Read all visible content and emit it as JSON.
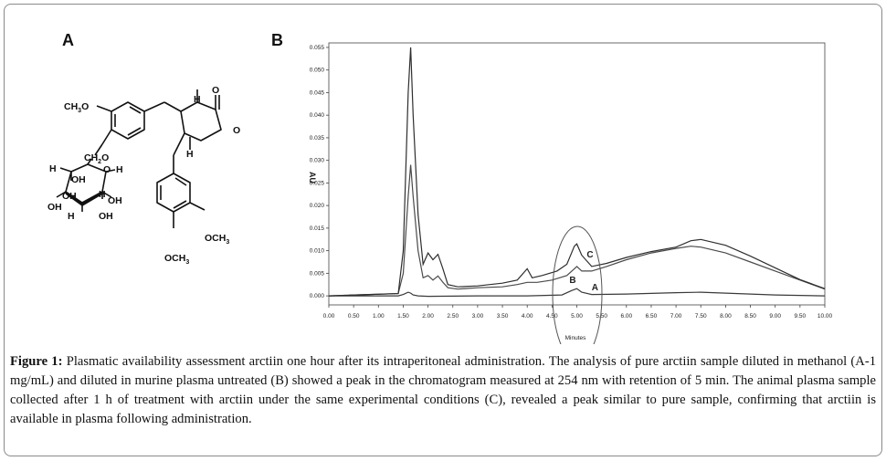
{
  "panels": {
    "a_label": "A",
    "b_label": "B"
  },
  "structure": {
    "labels": [
      "CH3O",
      "CH2O",
      "H",
      "O",
      "H",
      "OH",
      "OH",
      "H",
      "OH",
      "OH",
      "H",
      "OH",
      "O",
      "O",
      "H",
      "H",
      "OCH3",
      "OCH3"
    ]
  },
  "chart_data": {
    "type": "line",
    "xlabel": "Minutes",
    "ylabel": "AU",
    "xlim": [
      0.0,
      10.0
    ],
    "ylim": [
      -0.002,
      0.056
    ],
    "x_ticks": [
      "0.00",
      "0.50",
      "1.00",
      "1.50",
      "2.00",
      "2.50",
      "3.00",
      "3.50",
      "4.00",
      "4.50",
      "5.00",
      "5.50",
      "6.00",
      "6.50",
      "7.00",
      "7.50",
      "8.00",
      "8.50",
      "9.00",
      "9.50",
      "10.00"
    ],
    "y_ticks": [
      "0.000",
      "0.005",
      "0.010",
      "0.015",
      "0.020",
      "0.025",
      "0.030",
      "0.035",
      "0.040",
      "0.045",
      "0.050",
      "0.055"
    ],
    "grid": false,
    "series": [
      {
        "name": "A",
        "x": [
          0.0,
          1.4,
          1.5,
          1.6,
          1.65,
          1.7,
          1.8,
          2.0,
          3.0,
          4.0,
          4.7,
          4.9,
          5.0,
          5.1,
          5.3,
          6.0,
          7.0,
          7.5,
          8.0,
          9.0,
          10.0
        ],
        "y": [
          0.0,
          0.0,
          0.0003,
          0.0008,
          0.0006,
          0.0002,
          0.0,
          -0.0001,
          0.0,
          0.0,
          0.0002,
          0.0012,
          0.0016,
          0.0008,
          0.0003,
          0.0004,
          0.0007,
          0.0008,
          0.0006,
          0.0002,
          0.0
        ]
      },
      {
        "name": "B",
        "x": [
          0.0,
          1.4,
          1.5,
          1.6,
          1.65,
          1.7,
          1.8,
          1.9,
          2.0,
          2.1,
          2.2,
          2.3,
          2.4,
          2.6,
          3.0,
          3.5,
          3.8,
          4.0,
          4.2,
          4.5,
          4.8,
          4.95,
          5.0,
          5.1,
          5.3,
          5.6,
          6.0,
          6.5,
          7.0,
          7.3,
          7.5,
          8.0,
          8.5,
          9.0,
          9.5,
          10.0
        ],
        "y": [
          0.0,
          0.0005,
          0.005,
          0.022,
          0.029,
          0.022,
          0.01,
          0.004,
          0.0045,
          0.0035,
          0.0044,
          0.003,
          0.0018,
          0.0015,
          0.0018,
          0.002,
          0.0025,
          0.003,
          0.003,
          0.0035,
          0.0045,
          0.006,
          0.0065,
          0.0055,
          0.0055,
          0.0065,
          0.008,
          0.0095,
          0.0105,
          0.011,
          0.0108,
          0.0095,
          0.0075,
          0.0055,
          0.0035,
          0.0015
        ]
      },
      {
        "name": "C",
        "x": [
          0.0,
          1.4,
          1.5,
          1.6,
          1.65,
          1.7,
          1.8,
          1.9,
          2.0,
          2.1,
          2.2,
          2.3,
          2.4,
          2.6,
          3.0,
          3.5,
          3.8,
          4.0,
          4.1,
          4.3,
          4.6,
          4.8,
          4.95,
          5.0,
          5.1,
          5.3,
          5.6,
          6.0,
          6.5,
          7.0,
          7.3,
          7.5,
          8.0,
          8.5,
          9.0,
          9.5,
          10.0
        ],
        "y": [
          0.0,
          0.0005,
          0.01,
          0.045,
          0.055,
          0.04,
          0.018,
          0.007,
          0.0095,
          0.008,
          0.0092,
          0.006,
          0.0025,
          0.002,
          0.0022,
          0.0028,
          0.0035,
          0.006,
          0.004,
          0.0045,
          0.0055,
          0.007,
          0.011,
          0.0115,
          0.009,
          0.0065,
          0.0072,
          0.0085,
          0.0098,
          0.0108,
          0.0122,
          0.0125,
          0.0112,
          0.0088,
          0.0062,
          0.0036,
          0.0016
        ]
      }
    ]
  },
  "caption": {
    "label": "Figure 1:",
    "text": "Plasmatic availability assessment arctiin one hour after its intraperitoneal administration. The analysis of pure arctiin sample diluted in methanol (A-1 mg/mL) and diluted in murine plasma untreated (B) showed a peak in the chromatogram measured at 254 nm with retention of 5 min. The animal plasma sample collected after 1 h of treatment with arctiin under the same experimental conditions (C), revealed a peak similar to pure sample, confirming that arctiin is available in plasma following administration."
  }
}
